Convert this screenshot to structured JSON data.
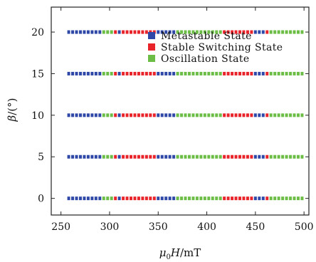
{
  "chart_data": {
    "type": "scatter",
    "title": "",
    "xlabel": {
      "symbol": "μ",
      "subscript": "0",
      "variable": "H",
      "unit": "/mT"
    },
    "ylabel": {
      "symbol": "β",
      "unit": "/(°)"
    },
    "xlim": [
      240,
      505
    ],
    "ylim": [
      -2,
      23
    ],
    "x_ticks": [
      250,
      300,
      350,
      400,
      450,
      500
    ],
    "y_ticks": [
      0,
      5,
      10,
      15,
      20
    ],
    "grid": false,
    "legend_position": "top-right",
    "x_step": 4,
    "y_values": [
      0,
      5,
      10,
      15,
      20
    ],
    "series": [
      {
        "name": "Metastable State",
        "color": "#2f48a8",
        "segments": [
          [
            258,
            290
          ],
          [
            310,
            310
          ],
          [
            350,
            366
          ],
          [
            450,
            458
          ]
        ]
      },
      {
        "name": "Stable Switching State",
        "color": "#e8232a",
        "segments": [
          [
            306,
            306
          ],
          [
            314,
            346
          ],
          [
            418,
            446
          ],
          [
            462,
            462
          ]
        ]
      },
      {
        "name": "Oscillation State",
        "color": "#6cbd45",
        "segments": [
          [
            294,
            302
          ],
          [
            370,
            414
          ],
          [
            466,
            498
          ]
        ]
      }
    ]
  }
}
